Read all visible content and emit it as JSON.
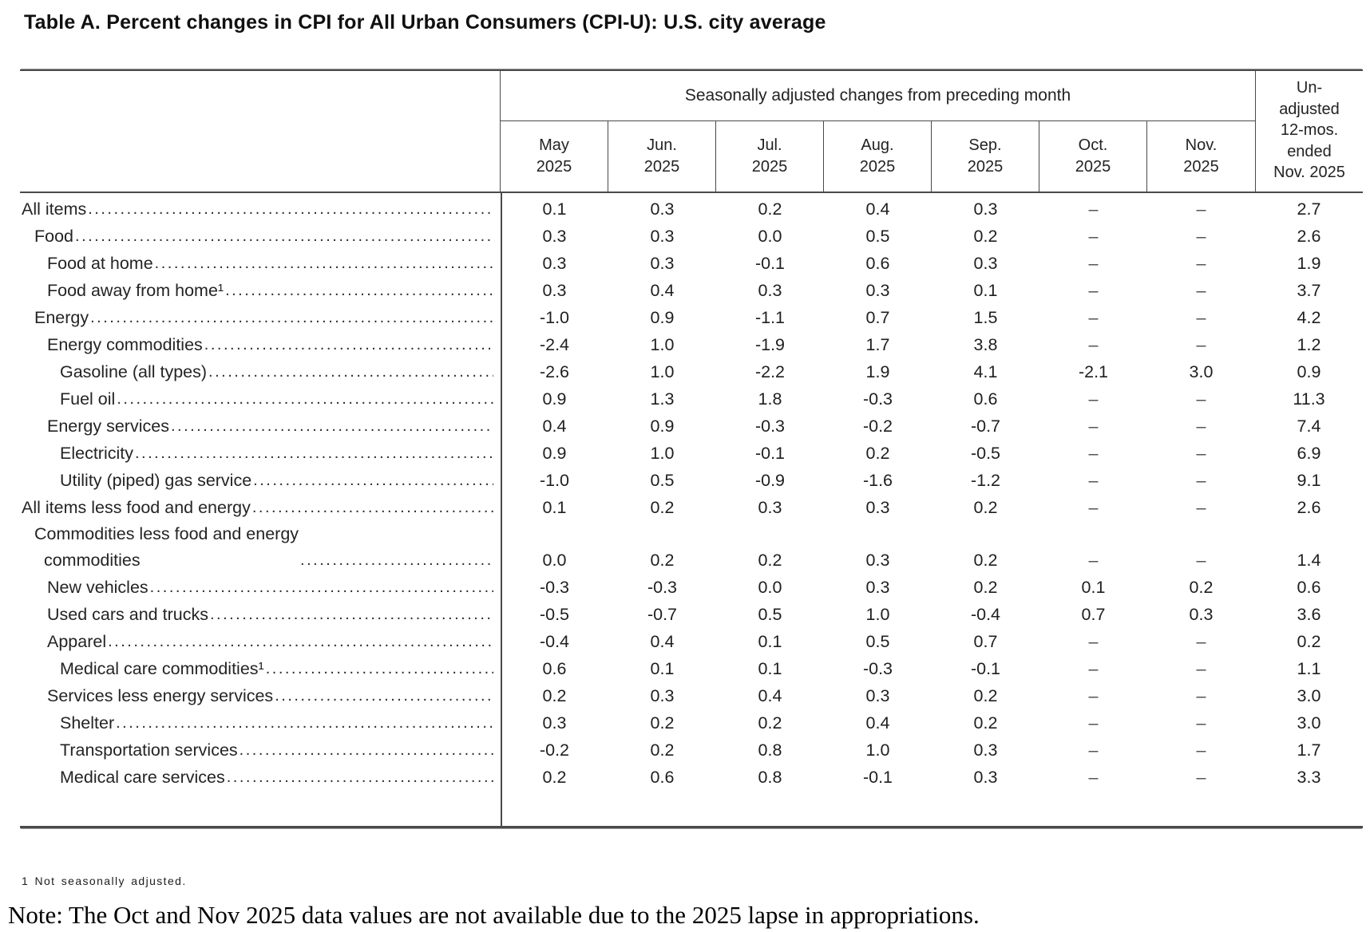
{
  "title": "Table A. Percent changes in CPI for All Urban Consumers (CPI-U): U.S. city average",
  "table": {
    "spanner": "Seasonally adjusted changes from preceding month",
    "unadjusted_header": "Un-\nadjusted\n12-mos.\nended\nNov. 2025",
    "month_columns": [
      "May\n2025",
      "Jun.\n2025",
      "Jul.\n2025",
      "Aug.\n2025",
      "Sep.\n2025",
      "Oct.\n2025",
      "Nov.\n2025"
    ],
    "missing_value_symbol": "–",
    "rows": [
      {
        "label": "All items",
        "indent": 0,
        "values": [
          "0.1",
          "0.3",
          "0.2",
          "0.4",
          "0.3",
          "–",
          "–",
          "2.7"
        ]
      },
      {
        "label": "Food",
        "indent": 1,
        "values": [
          "0.3",
          "0.3",
          "0.0",
          "0.5",
          "0.2",
          "–",
          "–",
          "2.6"
        ]
      },
      {
        "label": "Food at home",
        "indent": 2,
        "values": [
          "0.3",
          "0.3",
          "-0.1",
          "0.6",
          "0.3",
          "–",
          "–",
          "1.9"
        ]
      },
      {
        "label": "Food away from home¹",
        "indent": 2,
        "values": [
          "0.3",
          "0.4",
          "0.3",
          "0.3",
          "0.1",
          "–",
          "–",
          "3.7"
        ]
      },
      {
        "label": "Energy",
        "indent": 1,
        "values": [
          "-1.0",
          "0.9",
          "-1.1",
          "0.7",
          "1.5",
          "–",
          "–",
          "4.2"
        ]
      },
      {
        "label": "Energy commodities",
        "indent": 2,
        "values": [
          "-2.4",
          "1.0",
          "-1.9",
          "1.7",
          "3.8",
          "–",
          "–",
          "1.2"
        ]
      },
      {
        "label": "Gasoline (all types)",
        "indent": 3,
        "values": [
          "-2.6",
          "1.0",
          "-2.2",
          "1.9",
          "4.1",
          "-2.1",
          "3.0",
          "0.9"
        ]
      },
      {
        "label": "Fuel oil",
        "indent": 3,
        "values": [
          "0.9",
          "1.3",
          "1.8",
          "-0.3",
          "0.6",
          "–",
          "–",
          "11.3"
        ]
      },
      {
        "label": "Energy services",
        "indent": 2,
        "values": [
          "0.4",
          "0.9",
          "-0.3",
          "-0.2",
          "-0.7",
          "–",
          "–",
          "7.4"
        ]
      },
      {
        "label": "Electricity",
        "indent": 3,
        "values": [
          "0.9",
          "1.0",
          "-0.1",
          "0.2",
          "-0.5",
          "–",
          "–",
          "6.9"
        ]
      },
      {
        "label": "Utility (piped) gas service",
        "indent": 3,
        "values": [
          "-1.0",
          "0.5",
          "-0.9",
          "-1.6",
          "-1.2",
          "–",
          "–",
          "9.1"
        ]
      },
      {
        "label": "All items less food and energy",
        "indent": 0,
        "values": [
          "0.1",
          "0.2",
          "0.3",
          "0.3",
          "0.2",
          "–",
          "–",
          "2.6"
        ]
      },
      {
        "label": "Commodities less food and energy\n  commodities",
        "indent": 1,
        "values": [
          "0.0",
          "0.2",
          "0.2",
          "0.3",
          "0.2",
          "–",
          "–",
          "1.4"
        ]
      },
      {
        "label": "New vehicles",
        "indent": 2,
        "values": [
          "-0.3",
          "-0.3",
          "0.0",
          "0.3",
          "0.2",
          "0.1",
          "0.2",
          "0.6"
        ]
      },
      {
        "label": "Used cars and trucks",
        "indent": 2,
        "values": [
          "-0.5",
          "-0.7",
          "0.5",
          "1.0",
          "-0.4",
          "0.7",
          "0.3",
          "3.6"
        ]
      },
      {
        "label": "Apparel",
        "indent": 2,
        "values": [
          "-0.4",
          "0.4",
          "0.1",
          "0.5",
          "0.7",
          "–",
          "–",
          "0.2"
        ]
      },
      {
        "label": "Medical care commodities¹",
        "indent": 3,
        "values": [
          "0.6",
          "0.1",
          "0.1",
          "-0.3",
          "-0.1",
          "–",
          "–",
          "1.1"
        ]
      },
      {
        "label": "Services less energy services",
        "indent": 2,
        "values": [
          "0.2",
          "0.3",
          "0.4",
          "0.3",
          "0.2",
          "–",
          "–",
          "3.0"
        ]
      },
      {
        "label": "Shelter",
        "indent": 3,
        "values": [
          "0.3",
          "0.2",
          "0.2",
          "0.4",
          "0.2",
          "–",
          "–",
          "3.0"
        ]
      },
      {
        "label": "Transportation services",
        "indent": 3,
        "values": [
          "-0.2",
          "0.2",
          "0.8",
          "1.0",
          "0.3",
          "–",
          "–",
          "1.7"
        ]
      },
      {
        "label": "Medical care services",
        "indent": 3,
        "values": [
          "0.2",
          "0.6",
          "0.8",
          "-0.1",
          "0.3",
          "–",
          "–",
          "3.3"
        ]
      }
    ]
  },
  "footnote": "1 Not seasonally adjusted.",
  "note": "Note: The Oct and Nov 2025 data values are not available due to the 2025 lapse in appropriations."
}
